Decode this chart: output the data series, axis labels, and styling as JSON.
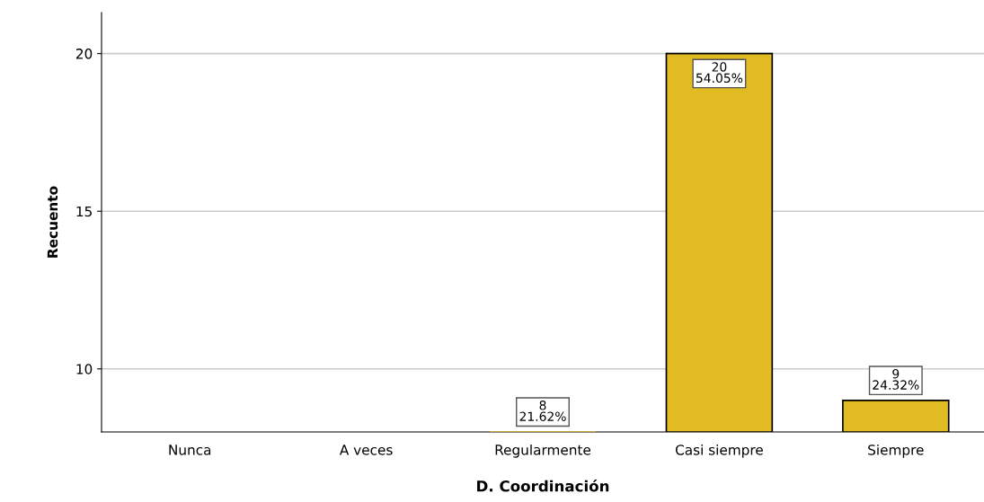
{
  "chart_data": {
    "type": "bar",
    "xlabel": "D. Coordinación",
    "ylabel": "Recuento",
    "categories": [
      "Nunca",
      "A veces",
      "Regularmente",
      "Casi siempre",
      "Siempre"
    ],
    "values": [
      null,
      null,
      8,
      20,
      9
    ],
    "value_labels": [
      null,
      null,
      "8\n21.62%",
      "20\n54.05%",
      "9\n24.32%"
    ],
    "color": "#e0bb22",
    "ylim": [
      8,
      21.3
    ],
    "yticks": [
      10,
      15,
      20
    ],
    "grid": "y"
  }
}
